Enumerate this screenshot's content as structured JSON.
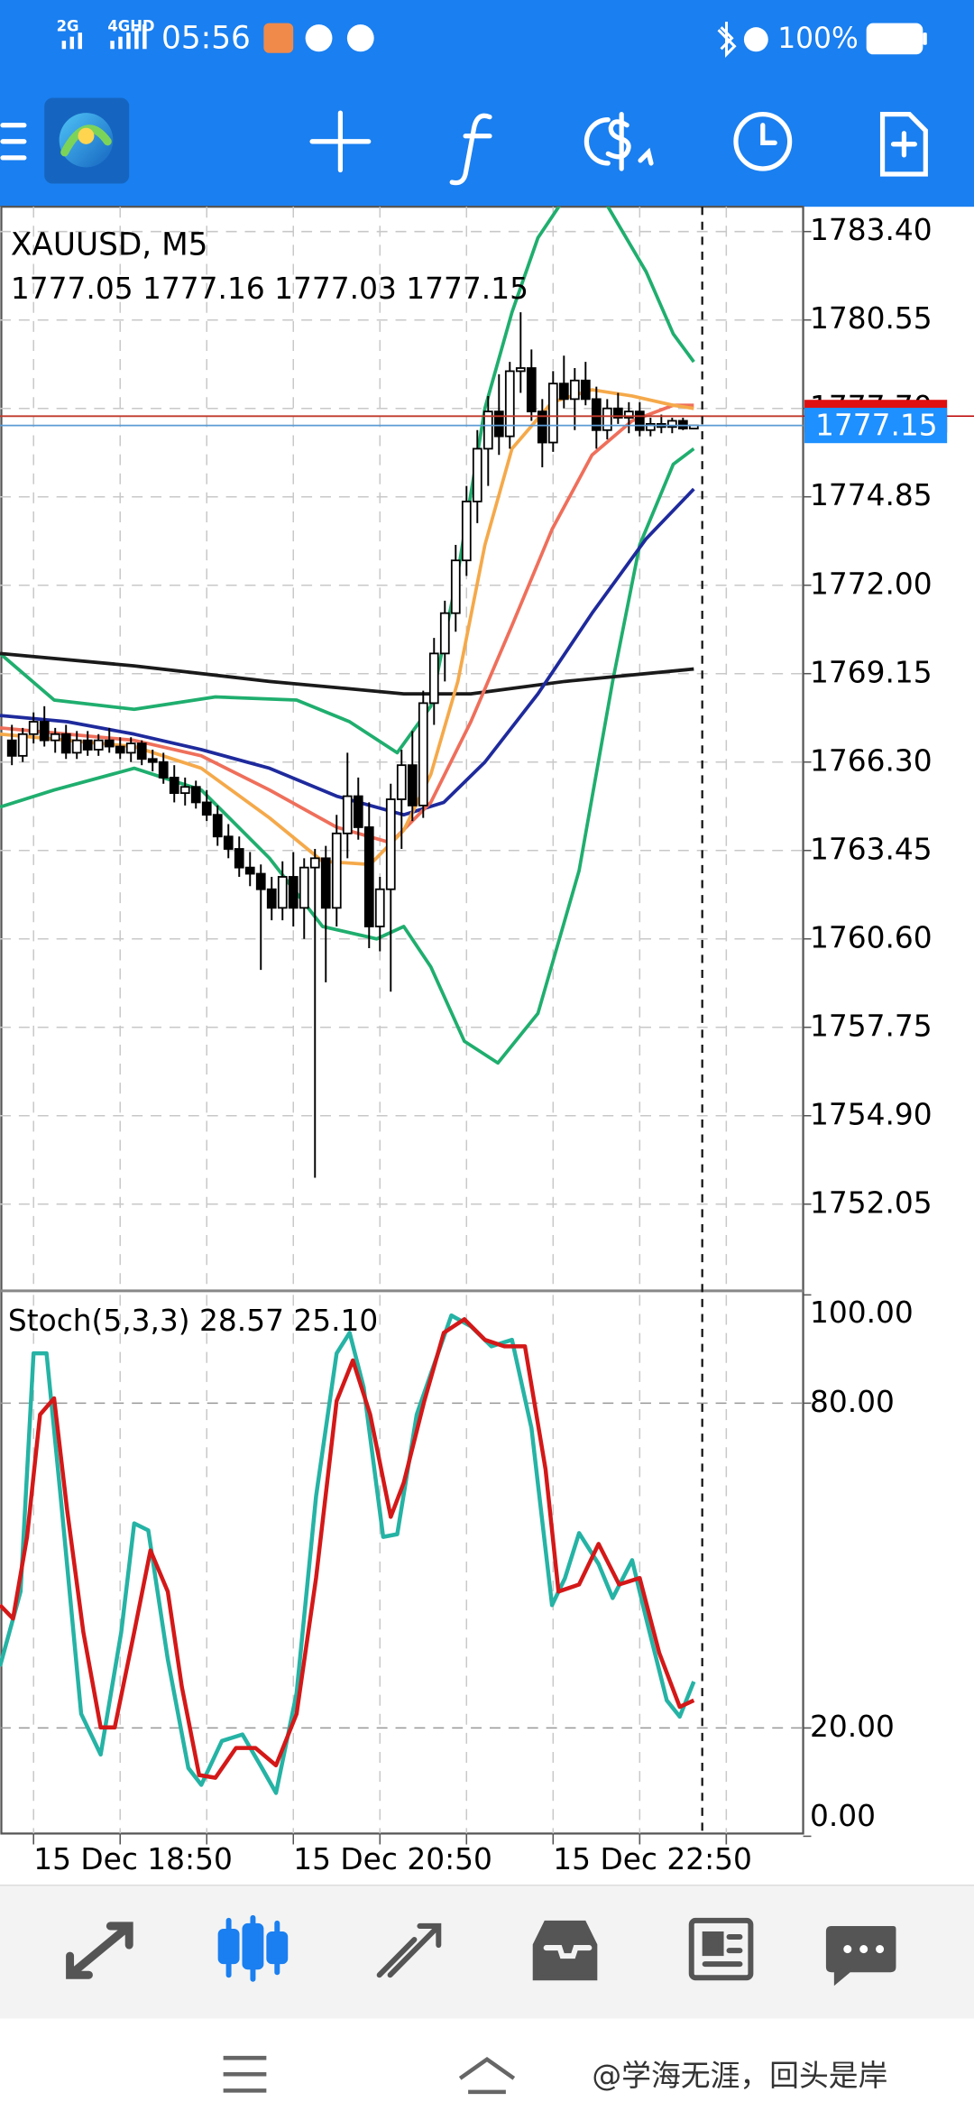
{
  "status_bar": {
    "network_1": "2G",
    "network_2": "4GHD",
    "time": "05:56",
    "battery": "100%"
  },
  "chart_data": [
    {
      "type": "candlestick",
      "title": "XAUUSD, M5",
      "xlim": [
        -3.1,
        71.1
      ],
      "ylim": [
        1749.3,
        1784.2
      ],
      "yticks": [
        {
          "value": 1783.4,
          "label": "1783.40"
        },
        {
          "value": 1780.55,
          "label": "1780.55"
        },
        {
          "value": 1777.7,
          "label": "1777.70"
        },
        {
          "value": 1774.85,
          "label": "1774.85"
        },
        {
          "value": 1772.0,
          "label": "1772.00"
        },
        {
          "value": 1769.15,
          "label": "1769.15"
        },
        {
          "value": 1766.3,
          "label": "1766.30"
        },
        {
          "value": 1763.45,
          "label": "1763.45"
        },
        {
          "value": 1760.6,
          "label": "1760.60"
        },
        {
          "value": 1757.75,
          "label": "1757.75"
        },
        {
          "value": 1754.9,
          "label": "1754.90"
        },
        {
          "value": 1752.05,
          "label": "1752.05"
        }
      ],
      "xgrid": [
        0,
        8,
        16,
        24,
        32,
        40,
        48,
        56,
        64
      ],
      "grid": true,
      "ask": 1777.45,
      "x": [
        -2,
        -1,
        0,
        1,
        2,
        3,
        4,
        5,
        6,
        7,
        8,
        9,
        10,
        11,
        12,
        13,
        14,
        15,
        16,
        17,
        18,
        19,
        20,
        21,
        22,
        23,
        24,
        25,
        26,
        27,
        28,
        29,
        30,
        31,
        32,
        33,
        34,
        35,
        36,
        37,
        38,
        39,
        40,
        41,
        42,
        43,
        44,
        45,
        46,
        47,
        48,
        49,
        50,
        51,
        52,
        53,
        54,
        55,
        56,
        57,
        58,
        59,
        60,
        61
      ],
      "candles": [
        [
          1767.0,
          1767.5,
          1766.2,
          1766.5
        ],
        [
          1766.5,
          1767.4,
          1766.3,
          1767.2
        ],
        [
          1767.2,
          1767.9,
          1766.9,
          1767.6
        ],
        [
          1767.6,
          1768.1,
          1766.8,
          1767.0
        ],
        [
          1767.0,
          1767.4,
          1766.6,
          1767.2
        ],
        [
          1767.2,
          1767.5,
          1766.4,
          1766.6
        ],
        [
          1766.6,
          1767.3,
          1766.4,
          1767.0
        ],
        [
          1767.0,
          1767.3,
          1766.5,
          1766.7
        ],
        [
          1766.7,
          1767.2,
          1766.5,
          1767.0
        ],
        [
          1767.0,
          1767.4,
          1766.6,
          1766.8
        ],
        [
          1766.8,
          1767.1,
          1766.4,
          1766.6
        ],
        [
          1766.6,
          1767.1,
          1766.3,
          1766.9
        ],
        [
          1766.9,
          1767.0,
          1766.2,
          1766.4
        ],
        [
          1766.4,
          1766.7,
          1766.0,
          1766.3
        ],
        [
          1766.3,
          1766.6,
          1765.6,
          1765.8
        ],
        [
          1765.8,
          1766.2,
          1765.0,
          1765.3
        ],
        [
          1765.3,
          1765.8,
          1764.9,
          1765.5
        ],
        [
          1765.5,
          1765.7,
          1764.8,
          1765.0
        ],
        [
          1765.0,
          1765.4,
          1764.4,
          1764.6
        ],
        [
          1764.6,
          1764.9,
          1763.6,
          1763.9
        ],
        [
          1763.9,
          1764.3,
          1763.2,
          1763.5
        ],
        [
          1763.5,
          1763.9,
          1762.6,
          1762.9
        ],
        [
          1762.9,
          1763.4,
          1762.3,
          1762.7
        ],
        [
          1762.7,
          1763.0,
          1759.6,
          1762.2
        ],
        [
          1762.2,
          1762.6,
          1761.2,
          1761.6
        ],
        [
          1761.6,
          1763.1,
          1761.2,
          1762.6
        ],
        [
          1762.6,
          1763.4,
          1761.0,
          1761.6
        ],
        [
          1761.6,
          1763.2,
          1760.6,
          1762.9
        ],
        [
          1762.9,
          1763.5,
          1752.9,
          1763.2
        ],
        [
          1763.2,
          1763.6,
          1759.2,
          1761.6
        ],
        [
          1761.6,
          1764.6,
          1761.0,
          1764.0
        ],
        [
          1764.0,
          1766.6,
          1763.2,
          1765.2
        ],
        [
          1765.2,
          1765.8,
          1763.8,
          1764.2
        ],
        [
          1764.2,
          1765.0,
          1760.3,
          1761.0
        ],
        [
          1761.0,
          1762.6,
          1760.2,
          1762.2
        ],
        [
          1762.2,
          1765.6,
          1758.9,
          1765.1
        ],
        [
          1765.1,
          1766.7,
          1763.5,
          1766.2
        ],
        [
          1766.2,
          1767.3,
          1764.4,
          1764.9
        ],
        [
          1764.9,
          1768.6,
          1764.5,
          1768.2
        ],
        [
          1768.2,
          1770.3,
          1767.5,
          1769.8
        ],
        [
          1769.8,
          1771.5,
          1768.9,
          1771.1
        ],
        [
          1771.1,
          1773.3,
          1770.5,
          1772.8
        ],
        [
          1772.8,
          1775.2,
          1772.3,
          1774.7
        ],
        [
          1774.7,
          1777.0,
          1774.0,
          1776.4
        ],
        [
          1776.4,
          1778.1,
          1775.2,
          1777.6
        ],
        [
          1777.6,
          1778.8,
          1776.2,
          1776.8
        ],
        [
          1776.8,
          1779.2,
          1776.4,
          1778.9
        ],
        [
          1778.9,
          1780.8,
          1778.2,
          1779.0
        ],
        [
          1779.0,
          1779.6,
          1777.3,
          1777.6
        ],
        [
          1777.6,
          1778.0,
          1775.8,
          1776.6
        ],
        [
          1776.6,
          1778.9,
          1776.3,
          1778.5
        ],
        [
          1778.5,
          1779.4,
          1777.7,
          1778.0
        ],
        [
          1778.0,
          1779.0,
          1777.0,
          1778.6
        ],
        [
          1778.6,
          1779.2,
          1777.8,
          1778.0
        ],
        [
          1778.0,
          1778.4,
          1776.4,
          1777.0
        ],
        [
          1777.0,
          1778.0,
          1776.7,
          1777.7
        ],
        [
          1777.7,
          1778.2,
          1777.2,
          1777.4
        ],
        [
          1777.4,
          1777.9,
          1776.9,
          1777.6
        ],
        [
          1777.6,
          1777.9,
          1776.8,
          1777.0
        ],
        [
          1777.0,
          1777.4,
          1776.8,
          1777.2
        ],
        [
          1777.2,
          1777.5,
          1776.9,
          1777.1
        ],
        [
          1777.1,
          1777.4,
          1776.9,
          1777.3
        ],
        [
          1777.3,
          1777.4,
          1777.0,
          1777.05
        ],
        [
          1777.05,
          1777.16,
          1777.03,
          1777.15
        ]
      ],
      "series": [
        {
          "color": "#1fae6e",
          "x": [
            -3.1,
            1.9,
            9.3,
            16.8,
            24.3,
            29.2,
            33.6,
            36.7,
            39.2,
            41.7,
            44.2,
            46.6,
            49.1,
            52.9,
            56.6,
            59.1,
            61.0
          ],
          "values": [
            1769.8,
            1768.3,
            1768.0,
            1768.4,
            1768.3,
            1767.6,
            1766.6,
            1768.1,
            1772.4,
            1777.7,
            1780.8,
            1783.2,
            1784.5,
            1784.3,
            1782.1,
            1780.1,
            1779.2
          ]
        },
        {
          "color": "#1fae6e",
          "x": [
            -3.1,
            1.9,
            9.3,
            15.5,
            21.8,
            26.7,
            31.7,
            34.2,
            36.7,
            39.8,
            42.9,
            46.6,
            50.4,
            53.5,
            56.0,
            59.1,
            61.0
          ],
          "values": [
            1764.85,
            1765.4,
            1766.1,
            1765.4,
            1763.2,
            1761.0,
            1760.6,
            1761.0,
            1759.7,
            1757.3,
            1756.6,
            1758.2,
            1762.8,
            1768.9,
            1773.3,
            1775.9,
            1776.4
          ]
        },
        {
          "color": "#1a1a1a",
          "x": [
            -3.1,
            9.3,
            21.8,
            34.2,
            40.4,
            49.1,
            61.0
          ],
          "values": [
            1769.8,
            1769.4,
            1768.9,
            1768.5,
            1768.5,
            1768.9,
            1769.3
          ]
        },
        {
          "color": "#1e2a9c",
          "x": [
            -3.1,
            3.1,
            9.3,
            15.5,
            21.8,
            28.0,
            34.2,
            37.9,
            41.7,
            46.6,
            51.6,
            56.6,
            61.0
          ],
          "values": [
            1767.8,
            1767.6,
            1767.2,
            1766.7,
            1766.1,
            1765.2,
            1764.6,
            1765.0,
            1766.3,
            1768.5,
            1771.1,
            1773.5,
            1775.1
          ]
        },
        {
          "color": "#ef6f5b",
          "x": [
            -3.1,
            3.1,
            9.3,
            15.5,
            21.8,
            28.0,
            33.0,
            36.7,
            40.4,
            44.2,
            47.9,
            51.6,
            55.3,
            59.1,
            61.0
          ],
          "values": [
            1767.4,
            1767.2,
            1767.0,
            1766.5,
            1765.4,
            1764.2,
            1763.7,
            1765.0,
            1767.6,
            1770.7,
            1773.8,
            1776.2,
            1777.3,
            1777.8,
            1777.8
          ]
        },
        {
          "color": "#f5a94a",
          "x": [
            -3.1,
            3.1,
            9.3,
            15.5,
            21.8,
            26.7,
            31.1,
            34.2,
            36.7,
            39.2,
            41.7,
            44.2,
            47.9,
            51.6,
            55.3,
            59.1,
            61.0
          ],
          "values": [
            1767.2,
            1767.0,
            1766.8,
            1766.1,
            1764.5,
            1763.1,
            1763.0,
            1764.1,
            1765.9,
            1768.9,
            1773.3,
            1776.4,
            1777.9,
            1778.3,
            1778.1,
            1777.8,
            1777.7
          ]
        }
      ]
    },
    {
      "type": "line",
      "title": "Stoch(5,3,3) 28.57 25.10",
      "xlim": [
        -3.1,
        71.1
      ],
      "ylim": [
        0,
        100
      ],
      "yticks": [
        {
          "value": 100,
          "label": "100.00"
        },
        {
          "value": 80,
          "label": "80.00"
        },
        {
          "value": 20,
          "label": "20.00"
        },
        {
          "value": 0,
          "label": "0.00"
        }
      ],
      "xticks": [
        {
          "value": 0,
          "label": "15 Dec 18:50"
        },
        {
          "value": 24,
          "label": "15 Dec 20:50"
        },
        {
          "value": 48,
          "label": "15 Dec 22:50"
        }
      ],
      "xgrid": [
        0,
        8,
        16,
        24,
        32,
        40,
        48,
        56,
        64
      ],
      "series": [
        {
          "color": "#25b3a5",
          "x": [
            -3.1,
            -1.2,
            0,
            1.2,
            2.5,
            4.4,
            6.2,
            8.1,
            9.3,
            10.6,
            12.4,
            14.3,
            15.5,
            17.4,
            19.3,
            21.1,
            22.4,
            24.3,
            26.1,
            28.0,
            29.2,
            30.5,
            32.3,
            33.6,
            35.4,
            36.7,
            38.6,
            40.4,
            42.3,
            44.2,
            46.0,
            47.9,
            49.1,
            50.4,
            52.2,
            53.5,
            55.3,
            56.6,
            58.5,
            59.7,
            61.0
          ],
          "values": [
            31.4,
            45.2,
            89.2,
            89.2,
            62.8,
            22.6,
            15.1,
            37.7,
            57.8,
            56.5,
            32.7,
            12.6,
            9.5,
            17.6,
            18.8,
            12.6,
            8.0,
            26.4,
            62.8,
            89.2,
            93.0,
            82.9,
            55.3,
            55.8,
            77.9,
            85.4,
            96.2,
            94.2,
            90.5,
            91.7,
            75.4,
            42.7,
            47.7,
            56.0,
            50.3,
            44.0,
            51.0,
            40.2,
            25.1,
            22.1,
            28.57
          ]
        },
        {
          "color": "#d41818",
          "x": [
            -3.1,
            -1.9,
            -0.6,
            0.6,
            1.9,
            3.1,
            4.6,
            6.2,
            7.5,
            9.3,
            10.8,
            12.4,
            13.7,
            15.3,
            16.8,
            18.7,
            20.5,
            22.4,
            24.3,
            26.1,
            28.0,
            29.5,
            31.1,
            33.0,
            34.2,
            36.1,
            37.9,
            39.8,
            41.7,
            43.5,
            45.4,
            47.3,
            48.5,
            50.4,
            52.2,
            54.1,
            56.0,
            57.8,
            59.7,
            61.0
          ],
          "values": [
            42.7,
            40.2,
            55.3,
            77.9,
            80.9,
            60.3,
            37.7,
            20.1,
            20.1,
            37.7,
            52.8,
            45.2,
            27.6,
            11.3,
            10.8,
            16.3,
            16.3,
            13.1,
            22.6,
            47.7,
            80.4,
            87.9,
            77.9,
            59.0,
            65.3,
            80.4,
            93.0,
            95.5,
            91.7,
            90.5,
            90.5,
            67.8,
            45.2,
            46.5,
            54.0,
            46.5,
            47.7,
            33.9,
            23.9,
            25.1
          ]
        }
      ]
    }
  ],
  "watermark": "@学海无涯，回头是岸"
}
